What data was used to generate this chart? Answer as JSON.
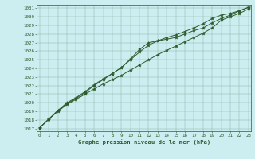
{
  "title": "Graphe pression niveau de la mer (hPa)",
  "background_color": "#cceef0",
  "grid_color": "#8ab8a8",
  "line_color": "#2d5a2d",
  "marker_color": "#2d5a2d",
  "xlim": [
    0,
    23
  ],
  "ylim": [
    1017,
    1031
  ],
  "yticks": [
    1017,
    1018,
    1019,
    1020,
    1021,
    1022,
    1023,
    1024,
    1025,
    1026,
    1027,
    1028,
    1029,
    1030,
    1031
  ],
  "xticks": [
    0,
    1,
    2,
    3,
    4,
    5,
    6,
    7,
    8,
    9,
    10,
    11,
    12,
    13,
    14,
    15,
    16,
    17,
    18,
    19,
    20,
    21,
    22,
    23
  ],
  "line1_x": [
    0,
    1,
    2,
    3,
    4,
    5,
    6,
    7,
    8,
    9,
    10,
    11,
    12,
    13,
    14,
    15,
    16,
    17,
    18,
    19,
    20,
    21,
    22,
    23
  ],
  "line1_y": [
    1017.1,
    1018.1,
    1019.0,
    1019.8,
    1020.4,
    1021.0,
    1021.6,
    1022.2,
    1022.7,
    1023.2,
    1023.8,
    1024.4,
    1025.0,
    1025.6,
    1026.1,
    1026.6,
    1027.1,
    1027.6,
    1028.1,
    1028.7,
    1029.6,
    1030.0,
    1030.4,
    1030.9
  ],
  "line2_x": [
    0,
    1,
    2,
    3,
    4,
    5,
    6,
    7,
    8,
    9,
    10,
    11,
    12,
    13,
    14,
    15,
    16,
    17,
    18,
    19,
    20,
    21,
    22,
    23
  ],
  "line2_y": [
    1017.1,
    1018.1,
    1019.1,
    1019.9,
    1020.5,
    1021.2,
    1022.0,
    1022.7,
    1023.4,
    1024.1,
    1025.1,
    1026.2,
    1027.0,
    1027.2,
    1027.4,
    1027.6,
    1028.0,
    1028.4,
    1028.7,
    1029.3,
    1029.8,
    1030.2,
    1030.7,
    1031.1
  ],
  "line3_x": [
    0,
    1,
    2,
    3,
    4,
    5,
    6,
    7,
    8,
    9,
    10,
    11,
    12,
    13,
    14,
    15,
    16,
    17,
    18,
    19,
    20,
    21,
    22,
    23
  ],
  "line3_y": [
    1017.1,
    1018.1,
    1019.1,
    1020.0,
    1020.6,
    1021.3,
    1022.1,
    1022.8,
    1023.4,
    1024.1,
    1025.0,
    1025.9,
    1026.7,
    1027.2,
    1027.6,
    1027.9,
    1028.3,
    1028.7,
    1029.2,
    1029.8,
    1030.2,
    1030.4,
    1030.7,
    1031.1
  ]
}
